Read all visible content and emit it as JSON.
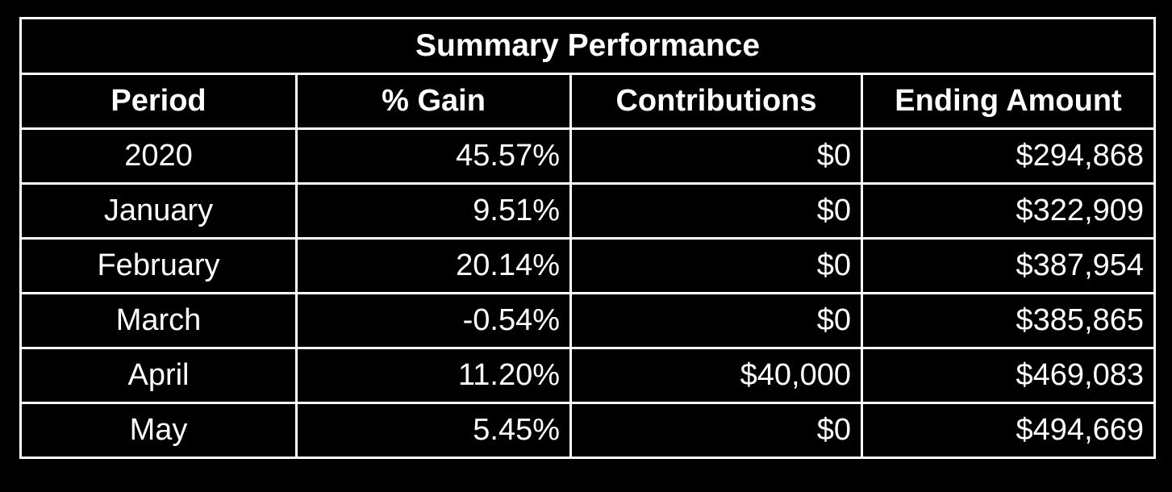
{
  "table": {
    "title": "Summary Performance",
    "header": [
      "Period",
      "% Gain",
      "Contributions",
      "Ending Amount"
    ],
    "rows": [
      [
        "2020",
        "45.57%",
        "$0",
        "$294,868"
      ],
      [
        "January",
        "9.51%",
        "$0",
        "$322,909"
      ],
      [
        "February",
        "20.14%",
        "$0",
        "$387,954"
      ],
      [
        "March",
        "-0.54%",
        "$0",
        "$385,865"
      ],
      [
        "April",
        "11.20%",
        "$40,000",
        "$469,083"
      ],
      [
        "May",
        "5.45%",
        "$0",
        "$494,669"
      ]
    ]
  }
}
